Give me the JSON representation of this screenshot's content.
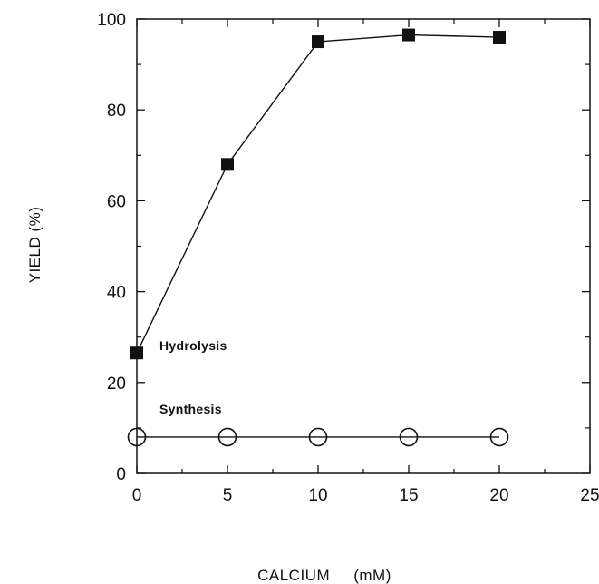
{
  "chart_data": {
    "type": "line",
    "xlabel": "CALCIUM     (mM)",
    "ylabel": "YIELD (%)",
    "xlim": [
      0,
      25
    ],
    "ylim": [
      0,
      100
    ],
    "x_ticks": [
      0,
      5,
      10,
      15,
      20,
      25
    ],
    "y_ticks": [
      0,
      20,
      40,
      60,
      80,
      100
    ],
    "grid": false,
    "legend": "none (series labelled directly on plot)",
    "series": [
      {
        "name": "Hydrolysis",
        "marker": "filled-square",
        "x": [
          0,
          5,
          10,
          15,
          20
        ],
        "values": [
          26.5,
          68,
          95,
          96.5,
          96
        ]
      },
      {
        "name": "Synthesis",
        "marker": "open-circle",
        "x": [
          0,
          5,
          10,
          15,
          20
        ],
        "values": [
          8,
          8,
          8,
          8,
          8
        ]
      }
    ]
  }
}
